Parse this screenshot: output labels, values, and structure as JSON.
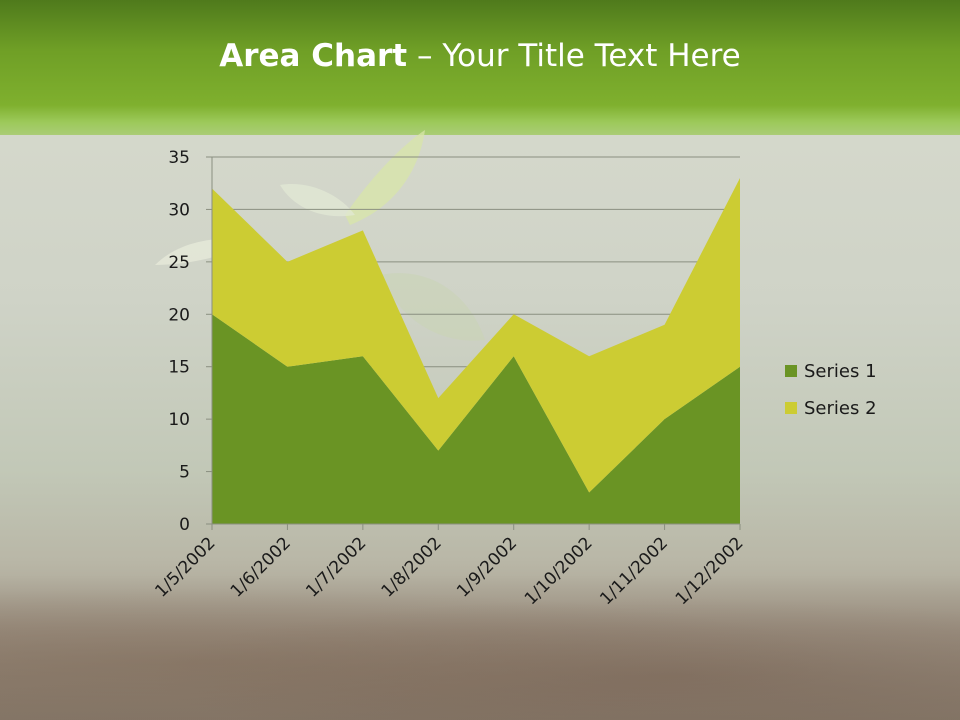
{
  "slide": {
    "title_bold": "Area Chart",
    "title_rest": " – Your Title Text Here"
  },
  "colors": {
    "series1": "#6a9424",
    "series2": "#cccc33",
    "gridline": "#8a8f80",
    "axis": "#8a8f80",
    "tick_text": "#1a1a1a"
  },
  "chart_data": {
    "type": "area",
    "stacked": true,
    "title": "",
    "xlabel": "",
    "ylabel": "",
    "categories": [
      "1/5/2002",
      "1/6/2002",
      "1/7/2002",
      "1/8/2002",
      "1/9/2002",
      "1/10/2002",
      "1/11/2002",
      "1/12/2002"
    ],
    "series": [
      {
        "name": "Series 1",
        "values": [
          20,
          15,
          16,
          7,
          16,
          3,
          10,
          15
        ]
      },
      {
        "name": "Series 2",
        "values": [
          12,
          10,
          12,
          5,
          4,
          13,
          9,
          18
        ]
      }
    ],
    "ylim": [
      0,
      35
    ],
    "yticks": [
      0,
      5,
      10,
      15,
      20,
      25,
      30,
      35
    ],
    "grid": true,
    "legend_position": "right"
  }
}
